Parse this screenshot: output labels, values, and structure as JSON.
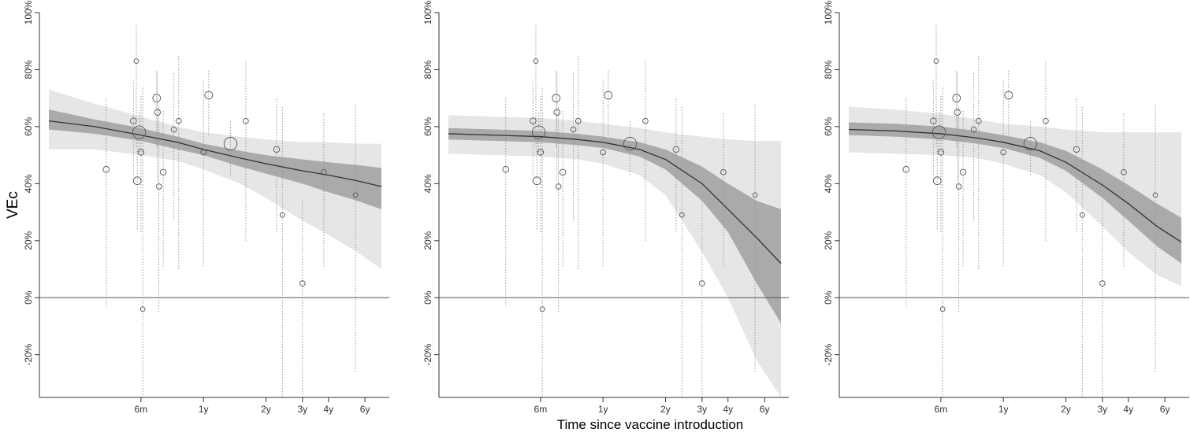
{
  "figure": {
    "y_axis_label": "VEc",
    "x_axis_label": "Time since vaccine introduction"
  },
  "chart_data": [
    {
      "type": "scatter",
      "panel": 1,
      "x_scale": "log",
      "x_unit": "years",
      "x_tick_labels": [
        "6m",
        "1y",
        "2y",
        "3y",
        "4y",
        "6y"
      ],
      "x_tick_values": [
        0.5,
        1,
        2,
        3,
        4,
        6
      ],
      "y_tick_labels": [
        "-20%",
        "0%",
        "20%",
        "40%",
        "60%",
        "80%",
        "100%"
      ],
      "y_tick_values": [
        -20,
        0,
        20,
        40,
        60,
        80,
        100
      ],
      "ylim": [
        -35,
        100
      ],
      "reference_line_y": 0,
      "points": [
        {
          "x": 0.34,
          "y": 45,
          "lo": -3,
          "hi": 70,
          "weight": 1
        },
        {
          "x": 0.46,
          "y": 62,
          "lo": 43,
          "hi": 76,
          "weight": 1
        },
        {
          "x": 0.475,
          "y": 83,
          "lo": 53,
          "hi": 96,
          "weight": 0.6
        },
        {
          "x": 0.48,
          "y": 41,
          "lo": 24,
          "hi": 56,
          "weight": 1.5
        },
        {
          "x": 0.49,
          "y": 58,
          "lo": 51,
          "hi": 65,
          "weight": 3
        },
        {
          "x": 0.5,
          "y": 51,
          "lo": 23,
          "hi": 71,
          "weight": 1
        },
        {
          "x": 0.51,
          "y": -4,
          "lo": -35,
          "hi": 74,
          "weight": 0.6
        },
        {
          "x": 0.595,
          "y": 70,
          "lo": 53,
          "hi": 80,
          "weight": 1.5
        },
        {
          "x": 0.6,
          "y": 65,
          "lo": 41,
          "hi": 79,
          "weight": 1
        },
        {
          "x": 0.61,
          "y": 39,
          "lo": -5,
          "hi": 67,
          "weight": 0.8
        },
        {
          "x": 0.64,
          "y": 44,
          "lo": 11,
          "hi": 66,
          "weight": 1
        },
        {
          "x": 0.72,
          "y": 59,
          "lo": 27,
          "hi": 79,
          "weight": 0.8
        },
        {
          "x": 0.76,
          "y": 62,
          "lo": 10,
          "hi": 85,
          "weight": 0.8
        },
        {
          "x": 1.0,
          "y": 51,
          "lo": 11,
          "hi": 76,
          "weight": 0.8
        },
        {
          "x": 1.06,
          "y": 71,
          "lo": 57,
          "hi": 80,
          "weight": 1.5
        },
        {
          "x": 1.35,
          "y": 54,
          "lo": 43,
          "hi": 62,
          "weight": 3
        },
        {
          "x": 1.6,
          "y": 62,
          "lo": 20,
          "hi": 83,
          "weight": 0.8
        },
        {
          "x": 2.25,
          "y": 52,
          "lo": 23,
          "hi": 70,
          "weight": 1
        },
        {
          "x": 2.4,
          "y": 29,
          "lo": -35,
          "hi": 67,
          "weight": 0.6
        },
        {
          "x": 3.0,
          "y": 5,
          "lo": -35,
          "hi": 34,
          "weight": 0.8
        },
        {
          "x": 3.8,
          "y": 44,
          "lo": 11,
          "hi": 65,
          "weight": 0.8
        },
        {
          "x": 5.4,
          "y": 36,
          "lo": -26,
          "hi": 68,
          "weight": 0.6
        }
      ],
      "fit_x": [
        0.18,
        0.3,
        0.5,
        0.75,
        1,
        1.5,
        2,
        3,
        4,
        5.5,
        7.2
      ],
      "fit": [
        62,
        60,
        57,
        54.5,
        52,
        49,
        47,
        44.5,
        43,
        41,
        39
      ],
      "ci_inner_lo": [
        59,
        57.5,
        55,
        52,
        50,
        46,
        43.5,
        40,
        37,
        34,
        31
      ],
      "ci_inner_hi": [
        66,
        62.5,
        59.5,
        56.5,
        54,
        51.5,
        50,
        48.5,
        47.5,
        46.5,
        45.5
      ],
      "ci_outer_lo": [
        52,
        52,
        50,
        48,
        45,
        40,
        35,
        27,
        22,
        16,
        10
      ],
      "ci_outer_hi": [
        73,
        68,
        63.5,
        60,
        58,
        56.5,
        55.5,
        54.5,
        54.5,
        54,
        54
      ]
    },
    {
      "type": "scatter",
      "panel": 2,
      "x_scale": "log",
      "x_unit": "years",
      "x_tick_labels": [
        "6m",
        "1y",
        "2y",
        "3y",
        "4y",
        "6y"
      ],
      "x_tick_values": [
        0.5,
        1,
        2,
        3,
        4,
        6
      ],
      "y_tick_labels": [
        "-20%",
        "0%",
        "20%",
        "40%",
        "60%",
        "80%",
        "100%"
      ],
      "y_tick_values": [
        -20,
        0,
        20,
        40,
        60,
        80,
        100
      ],
      "ylim": [
        -35,
        100
      ],
      "reference_line_y": 0,
      "points": [
        {
          "x": 0.34,
          "y": 45,
          "lo": -3,
          "hi": 70,
          "weight": 1
        },
        {
          "x": 0.46,
          "y": 62,
          "lo": 43,
          "hi": 76,
          "weight": 1
        },
        {
          "x": 0.475,
          "y": 83,
          "lo": 53,
          "hi": 96,
          "weight": 0.6
        },
        {
          "x": 0.48,
          "y": 41,
          "lo": 24,
          "hi": 56,
          "weight": 1.5
        },
        {
          "x": 0.49,
          "y": 58,
          "lo": 51,
          "hi": 65,
          "weight": 3
        },
        {
          "x": 0.5,
          "y": 51,
          "lo": 23,
          "hi": 71,
          "weight": 1
        },
        {
          "x": 0.51,
          "y": -4,
          "lo": -35,
          "hi": 74,
          "weight": 0.6
        },
        {
          "x": 0.595,
          "y": 70,
          "lo": 53,
          "hi": 80,
          "weight": 1.5
        },
        {
          "x": 0.6,
          "y": 65,
          "lo": 41,
          "hi": 79,
          "weight": 1
        },
        {
          "x": 0.61,
          "y": 39,
          "lo": -5,
          "hi": 67,
          "weight": 0.8
        },
        {
          "x": 0.64,
          "y": 44,
          "lo": 11,
          "hi": 66,
          "weight": 1
        },
        {
          "x": 0.72,
          "y": 59,
          "lo": 27,
          "hi": 79,
          "weight": 0.8
        },
        {
          "x": 0.76,
          "y": 62,
          "lo": 10,
          "hi": 85,
          "weight": 0.8
        },
        {
          "x": 1.0,
          "y": 51,
          "lo": 11,
          "hi": 76,
          "weight": 0.8
        },
        {
          "x": 1.06,
          "y": 71,
          "lo": 57,
          "hi": 80,
          "weight": 1.5
        },
        {
          "x": 1.35,
          "y": 54,
          "lo": 43,
          "hi": 62,
          "weight": 3
        },
        {
          "x": 1.6,
          "y": 62,
          "lo": 20,
          "hi": 83,
          "weight": 0.8
        },
        {
          "x": 2.25,
          "y": 52,
          "lo": 23,
          "hi": 70,
          "weight": 1
        },
        {
          "x": 2.4,
          "y": 29,
          "lo": -35,
          "hi": 67,
          "weight": 0.6
        },
        {
          "x": 3.0,
          "y": 5,
          "lo": -35,
          "hi": 34,
          "weight": 0.8
        },
        {
          "x": 3.8,
          "y": 44,
          "lo": 11,
          "hi": 65,
          "weight": 0.8
        },
        {
          "x": 5.4,
          "y": 36,
          "lo": -26,
          "hi": 68,
          "weight": 0.6
        }
      ],
      "fit_x": [
        0.18,
        0.3,
        0.5,
        0.75,
        1,
        1.5,
        2,
        3,
        4,
        5.5,
        7.2
      ],
      "fit": [
        57.5,
        57,
        56.5,
        55.5,
        54.5,
        52,
        48.5,
        40,
        31,
        21,
        12
      ],
      "ci_inner_lo": [
        55.5,
        55,
        54.5,
        53.5,
        52.5,
        49.5,
        45,
        34,
        23,
        5,
        -9
      ],
      "ci_inner_hi": [
        59.5,
        59,
        58.5,
        57.5,
        56.5,
        54.5,
        52,
        46,
        40,
        34,
        31
      ],
      "ci_outer_lo": [
        50.5,
        50,
        49.5,
        48.5,
        47,
        43,
        36,
        16,
        0,
        -22,
        -35
      ],
      "ci_outer_hi": [
        64,
        63.5,
        63,
        62,
        61,
        59.5,
        58,
        56.5,
        55.5,
        55,
        55
      ]
    },
    {
      "type": "scatter",
      "panel": 3,
      "x_scale": "log",
      "x_unit": "years",
      "x_tick_labels": [
        "6m",
        "1y",
        "2y",
        "3y",
        "4y",
        "6y"
      ],
      "x_tick_values": [
        0.5,
        1,
        2,
        3,
        4,
        6
      ],
      "y_tick_labels": [
        "-20%",
        "0%",
        "20%",
        "40%",
        "60%",
        "80%",
        "100%"
      ],
      "y_tick_values": [
        -20,
        0,
        20,
        40,
        60,
        80,
        100
      ],
      "ylim": [
        -35,
        100
      ],
      "reference_line_y": 0,
      "points": [
        {
          "x": 0.34,
          "y": 45,
          "lo": -3,
          "hi": 70,
          "weight": 1
        },
        {
          "x": 0.46,
          "y": 62,
          "lo": 43,
          "hi": 76,
          "weight": 1
        },
        {
          "x": 0.475,
          "y": 83,
          "lo": 53,
          "hi": 96,
          "weight": 0.6
        },
        {
          "x": 0.48,
          "y": 41,
          "lo": 24,
          "hi": 56,
          "weight": 1.5
        },
        {
          "x": 0.49,
          "y": 58,
          "lo": 51,
          "hi": 65,
          "weight": 3
        },
        {
          "x": 0.5,
          "y": 51,
          "lo": 23,
          "hi": 71,
          "weight": 1
        },
        {
          "x": 0.51,
          "y": -4,
          "lo": -35,
          "hi": 74,
          "weight": 0.6
        },
        {
          "x": 0.595,
          "y": 70,
          "lo": 53,
          "hi": 80,
          "weight": 1.5
        },
        {
          "x": 0.6,
          "y": 65,
          "lo": 41,
          "hi": 79,
          "weight": 1
        },
        {
          "x": 0.61,
          "y": 39,
          "lo": -5,
          "hi": 67,
          "weight": 0.8
        },
        {
          "x": 0.64,
          "y": 44,
          "lo": 11,
          "hi": 66,
          "weight": 1
        },
        {
          "x": 0.72,
          "y": 59,
          "lo": 27,
          "hi": 79,
          "weight": 0.8
        },
        {
          "x": 0.76,
          "y": 62,
          "lo": 10,
          "hi": 85,
          "weight": 0.8
        },
        {
          "x": 1.0,
          "y": 51,
          "lo": 11,
          "hi": 76,
          "weight": 0.8
        },
        {
          "x": 1.06,
          "y": 71,
          "lo": 57,
          "hi": 80,
          "weight": 1.5
        },
        {
          "x": 1.35,
          "y": 54,
          "lo": 43,
          "hi": 62,
          "weight": 3
        },
        {
          "x": 1.6,
          "y": 62,
          "lo": 20,
          "hi": 83,
          "weight": 0.8
        },
        {
          "x": 2.25,
          "y": 52,
          "lo": 23,
          "hi": 70,
          "weight": 1
        },
        {
          "x": 2.4,
          "y": 29,
          "lo": -35,
          "hi": 67,
          "weight": 0.6
        },
        {
          "x": 3.0,
          "y": 5,
          "lo": -35,
          "hi": 34,
          "weight": 0.8
        },
        {
          "x": 3.8,
          "y": 44,
          "lo": 11,
          "hi": 65,
          "weight": 0.8
        },
        {
          "x": 5.4,
          "y": 36,
          "lo": -26,
          "hi": 68,
          "weight": 0.6
        }
      ],
      "fit_x": [
        0.18,
        0.3,
        0.5,
        0.75,
        1,
        1.5,
        2,
        3,
        4,
        5.5,
        7.2
      ],
      "fit": [
        59,
        58.5,
        57.5,
        56,
        54.5,
        51.5,
        47.5,
        39.5,
        33,
        25,
        19.5
      ],
      "ci_inner_lo": [
        57,
        56.5,
        55.5,
        54,
        52.5,
        49,
        44.5,
        35,
        27,
        18,
        12
      ],
      "ci_inner_hi": [
        61.5,
        61,
        60,
        58.5,
        57,
        54.5,
        51.5,
        45,
        39.5,
        33,
        28
      ],
      "ci_outer_lo": [
        51,
        50.5,
        50,
        49,
        47,
        43,
        37,
        25,
        16,
        8,
        4
      ],
      "ci_outer_hi": [
        67,
        66,
        64.5,
        62.5,
        61,
        60,
        59,
        58,
        58,
        58,
        58
      ]
    }
  ]
}
